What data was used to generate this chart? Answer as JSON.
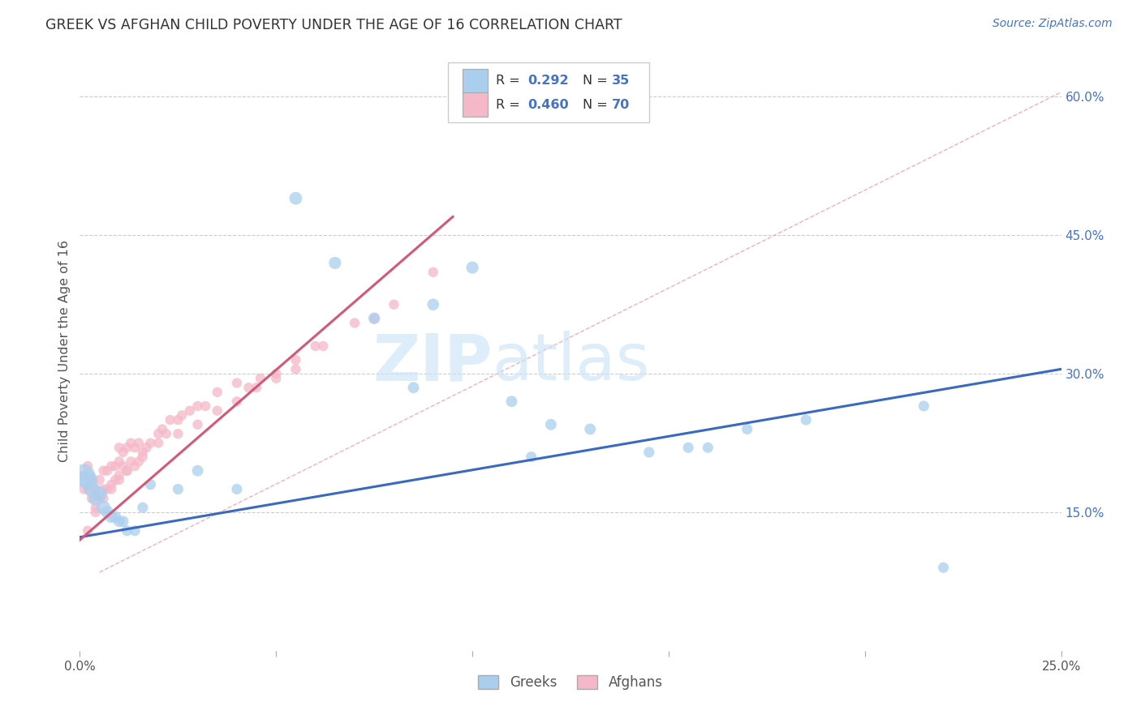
{
  "title": "GREEK VS AFGHAN CHILD POVERTY UNDER THE AGE OF 16 CORRELATION CHART",
  "source": "Source: ZipAtlas.com",
  "ylabel": "Child Poverty Under the Age of 16",
  "xlim": [
    0.0,
    0.25
  ],
  "ylim": [
    0.0,
    0.65
  ],
  "yticks_right": [
    0.15,
    0.3,
    0.45,
    0.6
  ],
  "ytick_right_labels": [
    "15.0%",
    "30.0%",
    "45.0%",
    "60.0%"
  ],
  "xticks": [
    0.0,
    0.05,
    0.1,
    0.15,
    0.2,
    0.25
  ],
  "xticklabels": [
    "0.0%",
    "",
    "",
    "",
    "",
    "25.0%"
  ],
  "background_color": "#ffffff",
  "grid_color": "#cccccc",
  "watermark_zip": "ZIP",
  "watermark_atlas": "atlas",
  "greek_color": "#aacfee",
  "afghan_color": "#f5b8c8",
  "greek_line_color": "#3a6abf",
  "afghan_line_color": "#d45878",
  "diagonal_color": "#f0b0c0",
  "legend_r_greek": "0.292",
  "legend_n_greek": "35",
  "legend_r_afghan": "0.460",
  "legend_n_afghan": "70",
  "greeks_x": [
    0.001,
    0.002,
    0.003,
    0.004,
    0.005,
    0.006,
    0.007,
    0.008,
    0.009,
    0.01,
    0.011,
    0.012,
    0.014,
    0.016,
    0.018,
    0.025,
    0.03,
    0.04,
    0.055,
    0.065,
    0.075,
    0.085,
    0.09,
    0.1,
    0.11,
    0.115,
    0.12,
    0.13,
    0.145,
    0.155,
    0.16,
    0.17,
    0.185,
    0.215,
    0.22
  ],
  "greeks_y": [
    0.19,
    0.185,
    0.175,
    0.165,
    0.17,
    0.155,
    0.15,
    0.145,
    0.145,
    0.14,
    0.14,
    0.13,
    0.13,
    0.155,
    0.18,
    0.175,
    0.195,
    0.175,
    0.49,
    0.42,
    0.36,
    0.285,
    0.375,
    0.415,
    0.27,
    0.21,
    0.245,
    0.24,
    0.215,
    0.22,
    0.22,
    0.24,
    0.25,
    0.265,
    0.09
  ],
  "greeks_size_scale": [
    400,
    300,
    200,
    160,
    180,
    150,
    130,
    120,
    110,
    100,
    100,
    90,
    90,
    90,
    90,
    90,
    100,
    90,
    130,
    120,
    110,
    100,
    110,
    120,
    100,
    90,
    100,
    100,
    90,
    90,
    90,
    90,
    90,
    90,
    90
  ],
  "afghans_x": [
    0.001,
    0.001,
    0.002,
    0.002,
    0.003,
    0.003,
    0.004,
    0.004,
    0.005,
    0.005,
    0.006,
    0.006,
    0.007,
    0.007,
    0.008,
    0.008,
    0.009,
    0.009,
    0.01,
    0.01,
    0.01,
    0.011,
    0.011,
    0.012,
    0.012,
    0.013,
    0.013,
    0.014,
    0.014,
    0.015,
    0.015,
    0.016,
    0.017,
    0.018,
    0.02,
    0.021,
    0.022,
    0.023,
    0.025,
    0.026,
    0.028,
    0.03,
    0.032,
    0.035,
    0.04,
    0.043,
    0.046,
    0.05,
    0.055,
    0.06,
    0.002,
    0.004,
    0.006,
    0.008,
    0.01,
    0.012,
    0.016,
    0.02,
    0.025,
    0.03,
    0.035,
    0.04,
    0.045,
    0.05,
    0.055,
    0.062,
    0.07,
    0.075,
    0.08,
    0.09
  ],
  "afghans_y": [
    0.19,
    0.175,
    0.2,
    0.175,
    0.185,
    0.165,
    0.175,
    0.155,
    0.185,
    0.165,
    0.195,
    0.175,
    0.195,
    0.175,
    0.2,
    0.18,
    0.2,
    0.185,
    0.19,
    0.205,
    0.22,
    0.2,
    0.215,
    0.195,
    0.22,
    0.205,
    0.225,
    0.2,
    0.22,
    0.205,
    0.225,
    0.215,
    0.22,
    0.225,
    0.235,
    0.24,
    0.235,
    0.25,
    0.25,
    0.255,
    0.26,
    0.265,
    0.265,
    0.28,
    0.29,
    0.285,
    0.295,
    0.3,
    0.315,
    0.33,
    0.13,
    0.15,
    0.165,
    0.175,
    0.185,
    0.195,
    0.21,
    0.225,
    0.235,
    0.245,
    0.26,
    0.27,
    0.285,
    0.295,
    0.305,
    0.33,
    0.355,
    0.36,
    0.375,
    0.41
  ],
  "afghans_size_scale": [
    80,
    80,
    80,
    80,
    80,
    80,
    80,
    80,
    80,
    80,
    80,
    80,
    80,
    80,
    80,
    80,
    80,
    80,
    80,
    80,
    80,
    80,
    80,
    80,
    80,
    80,
    80,
    80,
    80,
    80,
    80,
    80,
    80,
    80,
    80,
    80,
    80,
    80,
    80,
    80,
    80,
    80,
    80,
    80,
    80,
    80,
    80,
    80,
    80,
    80,
    80,
    80,
    80,
    80,
    80,
    80,
    80,
    80,
    80,
    80,
    80,
    80,
    80,
    80,
    80,
    80,
    80,
    80,
    80,
    80
  ],
  "greek_line_x": [
    0.0,
    0.25
  ],
  "greek_line_y": [
    0.123,
    0.305
  ],
  "afghan_line_x": [
    0.0,
    0.095
  ],
  "afghan_line_y": [
    0.12,
    0.47
  ],
  "diag_line_x": [
    0.005,
    0.25
  ],
  "diag_line_y": [
    0.085,
    0.605
  ]
}
